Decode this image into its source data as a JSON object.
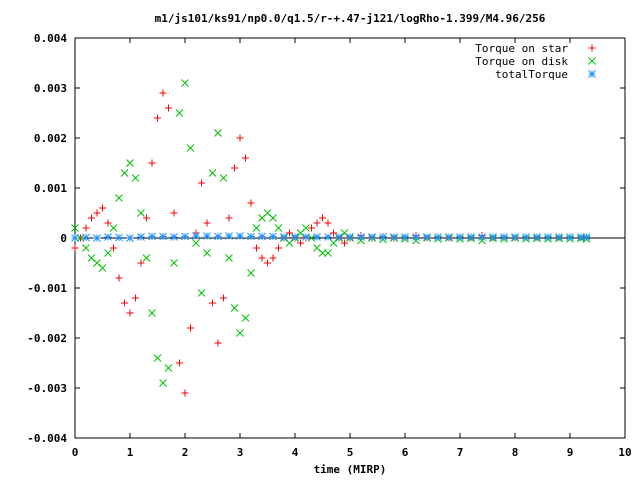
{
  "chart_data": {
    "type": "scatter",
    "title": "m1/js101/ks91/np0.0/q1.5/r-+.47-j121/logRho-1.399/M4.96/256",
    "xlabel": "time (MIRP)",
    "ylabel": "",
    "xlim": [
      0,
      10
    ],
    "ylim": [
      -0.004,
      0.004
    ],
    "xticks": [
      0,
      1,
      2,
      3,
      4,
      5,
      6,
      7,
      8,
      9,
      10
    ],
    "xtick_labels": [
      "0",
      "1",
      "2",
      "3",
      "4",
      "5",
      "6",
      "7",
      "8",
      "9",
      "10"
    ],
    "yticks": [
      -0.004,
      -0.003,
      -0.002,
      -0.001,
      0,
      0.001,
      0.002,
      0.003,
      0.004
    ],
    "ytick_labels": [
      "-0.004",
      "-0.003",
      "-0.002",
      "-0.001",
      "0",
      "0.001",
      "0.002",
      "0.003",
      "0.004"
    ],
    "grid": false,
    "legend_position": "top-right",
    "series": [
      {
        "name": "Torque on star",
        "marker": "plus",
        "color": "#ff0000",
        "x": [
          0.0,
          0.1,
          0.2,
          0.3,
          0.4,
          0.5,
          0.6,
          0.7,
          0.8,
          0.9,
          1.0,
          1.1,
          1.2,
          1.3,
          1.4,
          1.5,
          1.6,
          1.7,
          1.8,
          1.9,
          2.0,
          2.1,
          2.2,
          2.3,
          2.4,
          2.5,
          2.6,
          2.7,
          2.8,
          2.9,
          3.0,
          3.1,
          3.2,
          3.3,
          3.4,
          3.5,
          3.6,
          3.7,
          3.8,
          3.9,
          4.0,
          4.1,
          4.2,
          4.3,
          4.4,
          4.5,
          4.6,
          4.7,
          4.8,
          4.9,
          5.0,
          5.2,
          5.4,
          5.6,
          5.8,
          6.0,
          6.2,
          6.4,
          6.6,
          6.8,
          7.0,
          7.2,
          7.4,
          7.6,
          7.8,
          8.0,
          8.2,
          8.4,
          8.6,
          8.8,
          9.0,
          9.2,
          9.3
        ],
        "y": [
          -0.0002,
          0.0,
          0.0002,
          0.0004,
          0.0005,
          0.0006,
          0.0003,
          -0.0002,
          -0.0008,
          -0.0013,
          -0.0015,
          -0.0012,
          -0.0005,
          0.0004,
          0.0015,
          0.0024,
          0.0029,
          0.0026,
          0.0005,
          -0.0025,
          -0.0031,
          -0.0018,
          0.0001,
          0.0011,
          0.0003,
          -0.0013,
          -0.0021,
          -0.0012,
          0.0004,
          0.0014,
          0.002,
          0.0016,
          0.0007,
          -0.0002,
          -0.0004,
          -0.0005,
          -0.0004,
          -0.0002,
          0.0,
          0.0001,
          0.0,
          -0.0001,
          0.0,
          0.0002,
          0.0003,
          0.0004,
          0.0003,
          0.0001,
          0.0,
          -0.0001,
          0.0,
          5e-05,
          0.0,
          3e-05,
          0.0,
          2e-05,
          5e-05,
          0.0,
          2e-05,
          0.0,
          2e-05,
          1e-05,
          5e-05,
          1e-05,
          2e-05,
          0.0,
          2e-05,
          1e-05,
          2e-05,
          1e-05,
          2e-05,
          1e-05,
          2e-05
        ]
      },
      {
        "name": "Torque on disk",
        "marker": "cross",
        "color": "#00c000",
        "x": [
          0.0,
          0.1,
          0.2,
          0.3,
          0.4,
          0.5,
          0.6,
          0.7,
          0.8,
          0.9,
          1.0,
          1.1,
          1.2,
          1.3,
          1.4,
          1.5,
          1.6,
          1.7,
          1.8,
          1.9,
          2.0,
          2.1,
          2.2,
          2.3,
          2.4,
          2.5,
          2.6,
          2.7,
          2.8,
          2.9,
          3.0,
          3.1,
          3.2,
          3.3,
          3.4,
          3.5,
          3.6,
          3.7,
          3.8,
          3.9,
          4.0,
          4.1,
          4.2,
          4.3,
          4.4,
          4.5,
          4.6,
          4.7,
          4.8,
          4.9,
          5.0,
          5.2,
          5.4,
          5.6,
          5.8,
          6.0,
          6.2,
          6.4,
          6.6,
          6.8,
          7.0,
          7.2,
          7.4,
          7.6,
          7.8,
          8.0,
          8.2,
          8.4,
          8.6,
          8.8,
          9.0,
          9.2,
          9.3
        ],
        "y": [
          0.0002,
          0.0,
          -0.0002,
          -0.0004,
          -0.0005,
          -0.0006,
          -0.0003,
          0.0002,
          0.0008,
          0.0013,
          0.0015,
          0.0012,
          0.0005,
          -0.0004,
          -0.0015,
          -0.0024,
          -0.0029,
          -0.0026,
          -0.0005,
          0.0025,
          0.0031,
          0.0018,
          -0.0001,
          -0.0011,
          -0.0003,
          0.0013,
          0.0021,
          0.0012,
          -0.0004,
          -0.0014,
          -0.0019,
          -0.0016,
          -0.0007,
          0.0002,
          0.0004,
          0.0005,
          0.0004,
          0.0002,
          0.0,
          -0.0001,
          0.0,
          0.0001,
          0.0002,
          0.0,
          -0.0002,
          -0.0003,
          -0.0003,
          -0.0001,
          0.0,
          0.0001,
          0.0,
          -5e-05,
          0.0,
          -3e-05,
          0.0,
          -2e-05,
          -5e-05,
          0.0,
          -2e-05,
          0.0,
          -2e-05,
          -1e-05,
          -5e-05,
          -1e-05,
          -2e-05,
          0.0,
          -2e-05,
          -1e-05,
          -2e-05,
          -1e-05,
          -2e-05,
          -1e-05,
          -2e-05
        ]
      },
      {
        "name": "totalTorque",
        "marker": "star",
        "color": "#1e90ff",
        "x": [
          0.0,
          0.2,
          0.4,
          0.6,
          0.8,
          1.0,
          1.2,
          1.4,
          1.6,
          1.8,
          2.0,
          2.2,
          2.4,
          2.6,
          2.8,
          3.0,
          3.2,
          3.4,
          3.6,
          3.8,
          4.0,
          4.2,
          4.4,
          4.6,
          4.8,
          5.0,
          5.2,
          5.4,
          5.6,
          5.8,
          6.0,
          6.2,
          6.4,
          6.6,
          6.8,
          7.0,
          7.2,
          7.4,
          7.6,
          7.8,
          8.0,
          8.2,
          8.4,
          8.6,
          8.8,
          9.0,
          9.2,
          9.3
        ],
        "y": [
          0.0,
          1e-05,
          0.0,
          2e-05,
          1e-05,
          0.0,
          2e-05,
          3e-05,
          3e-05,
          2e-05,
          3e-05,
          4e-05,
          4e-05,
          3e-05,
          4e-05,
          4e-05,
          3e-05,
          3e-05,
          3e-05,
          2e-05,
          2e-05,
          2e-05,
          2e-05,
          2e-05,
          2e-05,
          2e-05,
          2e-05,
          2e-05,
          2e-05,
          2e-05,
          2e-05,
          2e-05,
          2e-05,
          2e-05,
          2e-05,
          2e-05,
          2e-05,
          2e-05,
          2e-05,
          2e-05,
          2e-05,
          2e-05,
          2e-05,
          2e-05,
          2e-05,
          2e-05,
          2e-05,
          2e-05
        ]
      }
    ]
  }
}
